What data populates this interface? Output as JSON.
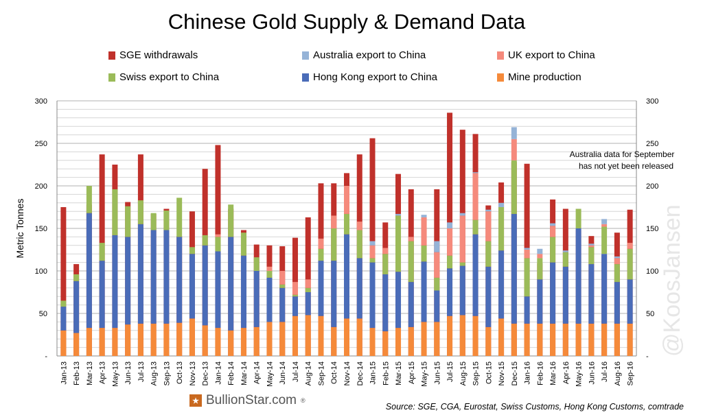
{
  "title": "Chinese Gold Supply & Demand Data",
  "legend": [
    {
      "label": "SGE withdrawals",
      "color": "#c0312b"
    },
    {
      "label": "Australia export to China",
      "color": "#95b3d7"
    },
    {
      "label": "UK export to China",
      "color": "#f58a7c"
    },
    {
      "label": "Swiss export to China",
      "color": "#9bbb59"
    },
    {
      "label": "Hong Kong export to China",
      "color": "#4a6cb8"
    },
    {
      "label": "Mine production",
      "color": "#f58a3a"
    }
  ],
  "annotation": "Australia data for September has not yet been released",
  "source": "Source: SGE, CGA, Eurostat, Swiss Customs, Hong Kong Customs, comtrade",
  "logo": {
    "name": "BullionStar.com",
    "mark": "®"
  },
  "watermark": "@KoosJansen",
  "chart_data": {
    "type": "bar",
    "ylabel": "Metric Tonnes",
    "ylim": [
      0,
      300
    ],
    "yticks": [
      "-",
      "50",
      "100",
      "150",
      "200",
      "250",
      "300"
    ],
    "grid": true,
    "categories": [
      "Jan-13",
      "Feb-13",
      "Mar-13",
      "Apr-13",
      "May-13",
      "Jun-13",
      "Jul-13",
      "Aug-13",
      "Sep-13",
      "Oct-13",
      "Nov-13",
      "Dec-13",
      "Jan-14",
      "Feb-14",
      "Mar-14",
      "Apr-14",
      "May-14",
      "Jun-14",
      "Jul-14",
      "Aug-14",
      "Sep-14",
      "Oct-14",
      "Nov-14",
      "Dec-14",
      "Jan-15",
      "Feb-15",
      "Mar-15",
      "Apr-15",
      "May-15",
      "Jun-15",
      "Jul-15",
      "Aug-15",
      "Sep-15",
      "Oct-15",
      "Nov-15",
      "Dec-15",
      "Jan-16",
      "Feb-16",
      "Mar-16",
      "Apr-16",
      "May-16",
      "Jun-16",
      "Jul-16",
      "Aug-16",
      "Sep-16"
    ],
    "sge": [
      175,
      108,
      178,
      237,
      225,
      181,
      237,
      167,
      173,
      141,
      170,
      220,
      248,
      173,
      148,
      131,
      130,
      129,
      139,
      163,
      203,
      203,
      215,
      237,
      256,
      157,
      214,
      196,
      163,
      196,
      286,
      266,
      261,
      177,
      204,
      228,
      226,
      109,
      184,
      173,
      148,
      141,
      119,
      145,
      172
    ],
    "mine": [
      30,
      27,
      33,
      33,
      33,
      37,
      38,
      38,
      38,
      39,
      44,
      36,
      33,
      30,
      33,
      34,
      40,
      40,
      47,
      48,
      47,
      34,
      44,
      44,
      33,
      29,
      33,
      34,
      40,
      40,
      47,
      48,
      47,
      34,
      44,
      38,
      38,
      38,
      38,
      38,
      38,
      38,
      38,
      38,
      38
    ],
    "hk_cum": [
      58,
      88,
      168,
      112,
      142,
      140,
      155,
      148,
      148,
      140,
      120,
      130,
      123,
      140,
      118,
      100,
      92,
      80,
      70,
      75,
      112,
      112,
      143,
      115,
      110,
      96,
      99,
      87,
      111,
      77,
      103,
      106,
      143,
      105,
      124,
      167,
      70,
      90,
      110,
      105,
      150,
      108,
      120,
      87,
      90
    ],
    "swiss_cum": [
      65,
      96,
      200,
      133,
      196,
      176,
      183,
      168,
      171,
      186,
      128,
      142,
      140,
      178,
      145,
      116,
      100,
      84,
      72,
      80,
      126,
      150,
      167,
      148,
      115,
      120,
      165,
      135,
      130,
      92,
      118,
      110,
      160,
      135,
      175,
      230,
      115,
      115,
      140,
      122,
      173,
      128,
      152,
      108,
      126
    ],
    "uk_cum": [
      65,
      96,
      200,
      133,
      196,
      176,
      183,
      168,
      171,
      186,
      128,
      142,
      143,
      178,
      145,
      116,
      105,
      100,
      87,
      90,
      138,
      165,
      200,
      158,
      130,
      127,
      165,
      140,
      163,
      122,
      150,
      165,
      215,
      170,
      175,
      255,
      125,
      120,
      153,
      122,
      173,
      130,
      155,
      115,
      133
    ],
    "aus_cum": [
      65,
      96,
      200,
      133,
      196,
      176,
      183,
      168,
      171,
      186,
      128,
      142,
      143,
      178,
      145,
      116,
      105,
      100,
      87,
      90,
      138,
      165,
      200,
      158,
      135,
      127,
      167,
      140,
      166,
      135,
      157,
      168,
      216,
      172,
      180,
      269,
      127,
      126,
      156,
      124,
      173,
      132,
      161,
      117,
      133
    ]
  }
}
